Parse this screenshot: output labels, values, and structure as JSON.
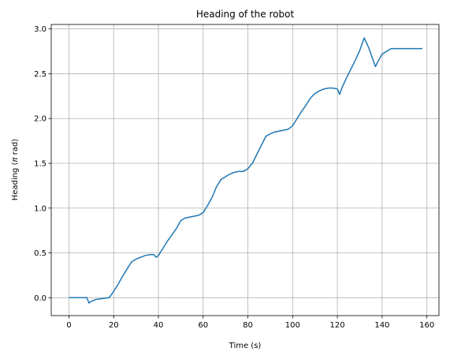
{
  "chart_data": {
    "type": "line",
    "title": "Heading of the robot",
    "xlabel": "Time (s)",
    "ylabel_prefix": "Heading (",
    "ylabel_symbol": "π",
    "ylabel_suffix": " rad)",
    "xlim": [
      -7.9,
      165.4
    ],
    "ylim": [
      -0.2,
      3.05
    ],
    "xticks": [
      0,
      20,
      40,
      60,
      80,
      100,
      120,
      140,
      160
    ],
    "xtick_labels": [
      "0",
      "20",
      "40",
      "60",
      "80",
      "100",
      "120",
      "140",
      "160"
    ],
    "yticks": [
      0.0,
      0.5,
      1.0,
      1.5,
      2.0,
      2.5,
      3.0
    ],
    "ytick_labels": [
      "0.0",
      "0.5",
      "1.0",
      "1.5",
      "2.0",
      "2.5",
      "3.0"
    ],
    "grid": true,
    "line_color": "#1f77b4",
    "series": [
      {
        "x": [
          0,
          8,
          9,
          10,
          12,
          15,
          18,
          20,
          22,
          24,
          26,
          28,
          30,
          32,
          34,
          36,
          38,
          39,
          40,
          42,
          44,
          46,
          48,
          50,
          52,
          54,
          56,
          58,
          60,
          62,
          64,
          66,
          68,
          70,
          72,
          74,
          76,
          78,
          80,
          82,
          84,
          86,
          88,
          90,
          92,
          94,
          96,
          98,
          100,
          102,
          104,
          106,
          108,
          110,
          112,
          114,
          116,
          118,
          120,
          121,
          122,
          124,
          126,
          128,
          130,
          132,
          134,
          136,
          137,
          138,
          140,
          142,
          144,
          150,
          158
        ],
        "y": [
          0.0,
          0.0,
          -0.06,
          -0.04,
          -0.02,
          -0.01,
          0.0,
          0.07,
          0.15,
          0.24,
          0.32,
          0.4,
          0.43,
          0.45,
          0.47,
          0.48,
          0.48,
          0.45,
          0.47,
          0.55,
          0.63,
          0.7,
          0.77,
          0.86,
          0.89,
          0.9,
          0.91,
          0.92,
          0.95,
          1.03,
          1.12,
          1.24,
          1.32,
          1.35,
          1.38,
          1.4,
          1.41,
          1.41,
          1.44,
          1.5,
          1.6,
          1.7,
          1.8,
          1.83,
          1.85,
          1.86,
          1.87,
          1.88,
          1.92,
          2.0,
          2.08,
          2.15,
          2.23,
          2.28,
          2.31,
          2.33,
          2.34,
          2.34,
          2.33,
          2.27,
          2.34,
          2.45,
          2.55,
          2.65,
          2.76,
          2.9,
          2.79,
          2.65,
          2.58,
          2.63,
          2.72,
          2.75,
          2.78,
          2.78,
          2.78
        ]
      }
    ]
  }
}
